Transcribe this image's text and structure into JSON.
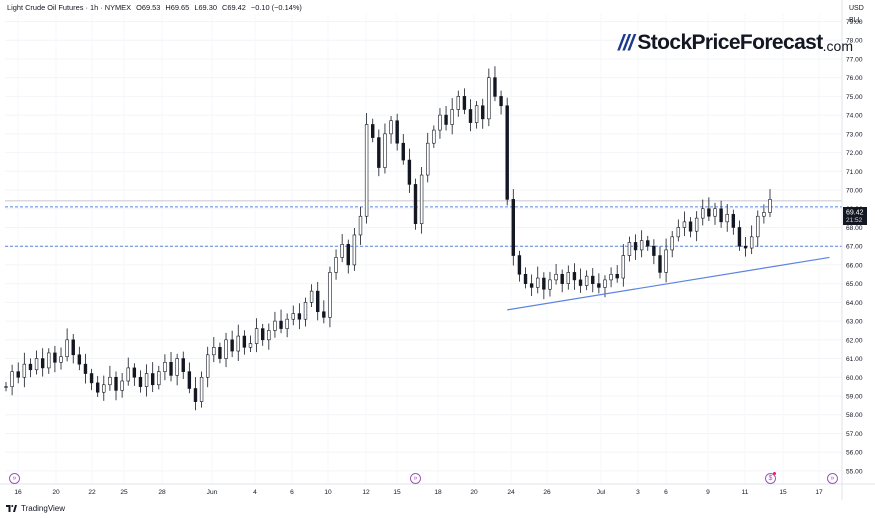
{
  "header": {
    "instrument": "Light Crude Oil Futures · 1h · NYMEX",
    "open": "O69.53",
    "high": "H69.65",
    "low": "L69.30",
    "close": "C69.42",
    "change": "−0.10 (−0.14%)"
  },
  "brand": {
    "name": "StockPriceForecast",
    "domain": ".com",
    "slashes": "///"
  },
  "axis_units": {
    "currency": "USD",
    "unit": "BLL"
  },
  "footer": {
    "label": "TradingView"
  },
  "price_tag": {
    "value": "69.42",
    "countdown": "21:52"
  },
  "colors": {
    "candles": "#131722",
    "trendline": "#5b84e0",
    "levels": "#5b84e0",
    "nav": "#9b59b6",
    "alert": "#e91e63",
    "grid": "#f0f3fa"
  },
  "icons": {
    "nav_left": "double-chevron-right-icon",
    "nav_center": "double-chevron-right-icon",
    "nav_alert": "dollar-alert-icon",
    "nav_right": "double-chevron-right-icon"
  },
  "chart_data": {
    "type": "line",
    "title": "",
    "xlabel": "",
    "ylabel": "",
    "ylim": [
      54.3,
      79.4
    ],
    "y_ticks": [
      "55.00",
      "56.00",
      "57.00",
      "58.00",
      "59.00",
      "60.00",
      "61.00",
      "62.00",
      "63.00",
      "64.00",
      "65.00",
      "66.00",
      "67.00",
      "68.00",
      "69.00",
      "70.00",
      "71.00",
      "72.00",
      "73.00",
      "74.00",
      "75.00",
      "76.00",
      "77.00",
      "78.00",
      "79.00"
    ],
    "x_ticks": [
      "16",
      "20",
      "22",
      "25",
      "28",
      "Jun",
      "4",
      "6",
      "10",
      "12",
      "15",
      "18",
      "20",
      "24",
      "26",
      "Jul",
      "3",
      "6",
      "9",
      "11",
      "15",
      "17"
    ],
    "grid": true,
    "series": [
      {
        "values": [
          59.5,
          60.3,
          60.0,
          60.7,
          60.4,
          61.0,
          60.5,
          61.3,
          60.8,
          61.1,
          62.0,
          61.2,
          60.7,
          60.2,
          59.7,
          59.2,
          59.6,
          60.0,
          59.3,
          59.8,
          60.5,
          60.0,
          59.5,
          60.2,
          59.6,
          60.3,
          60.8,
          60.1,
          61.0,
          60.3,
          59.4,
          58.7,
          60.0,
          61.2,
          61.6,
          61.0,
          62.0,
          61.4,
          62.2,
          61.6,
          61.8,
          62.6,
          62.0,
          62.5,
          63.0,
          62.6,
          63.1,
          63.4,
          63.1,
          64.0,
          64.6,
          63.5,
          63.2,
          65.6,
          66.4,
          67.1,
          66.0,
          67.6,
          68.6,
          73.5,
          72.8,
          71.2,
          73.0,
          73.7,
          72.5,
          71.6,
          70.3,
          68.2,
          70.8,
          72.5,
          73.2,
          74.0,
          73.5,
          74.3,
          75.0,
          74.3,
          73.6,
          74.5,
          73.8,
          76.0,
          75.0,
          74.5,
          69.5,
          66.5,
          65.5,
          65.0,
          64.8,
          65.3,
          64.7,
          65.2,
          65.5,
          65.0,
          65.6,
          65.2,
          64.9,
          65.4,
          65.0,
          64.8,
          65.2,
          65.5,
          65.3,
          66.5,
          67.2,
          66.8,
          67.3,
          67.0,
          66.5,
          65.6,
          66.8,
          67.5,
          68.0,
          68.3,
          67.8,
          68.5,
          69.0,
          68.6,
          69.0,
          68.3,
          68.7,
          68.0,
          67.0,
          66.9,
          67.5,
          68.6,
          68.8,
          69.5
        ]
      }
    ],
    "annotations": [
      {
        "type": "horizontal_level",
        "y": 69.1
      },
      {
        "type": "horizontal_level",
        "y": 67.0
      },
      {
        "type": "horizontal_line",
        "y": 69.42
      },
      {
        "type": "trendline",
        "from": [
          0.6,
          63.6
        ],
        "to": [
          0.985,
          66.4
        ]
      },
      {
        "type": "price_label",
        "y": 69.42,
        "text": "69.42"
      }
    ]
  }
}
